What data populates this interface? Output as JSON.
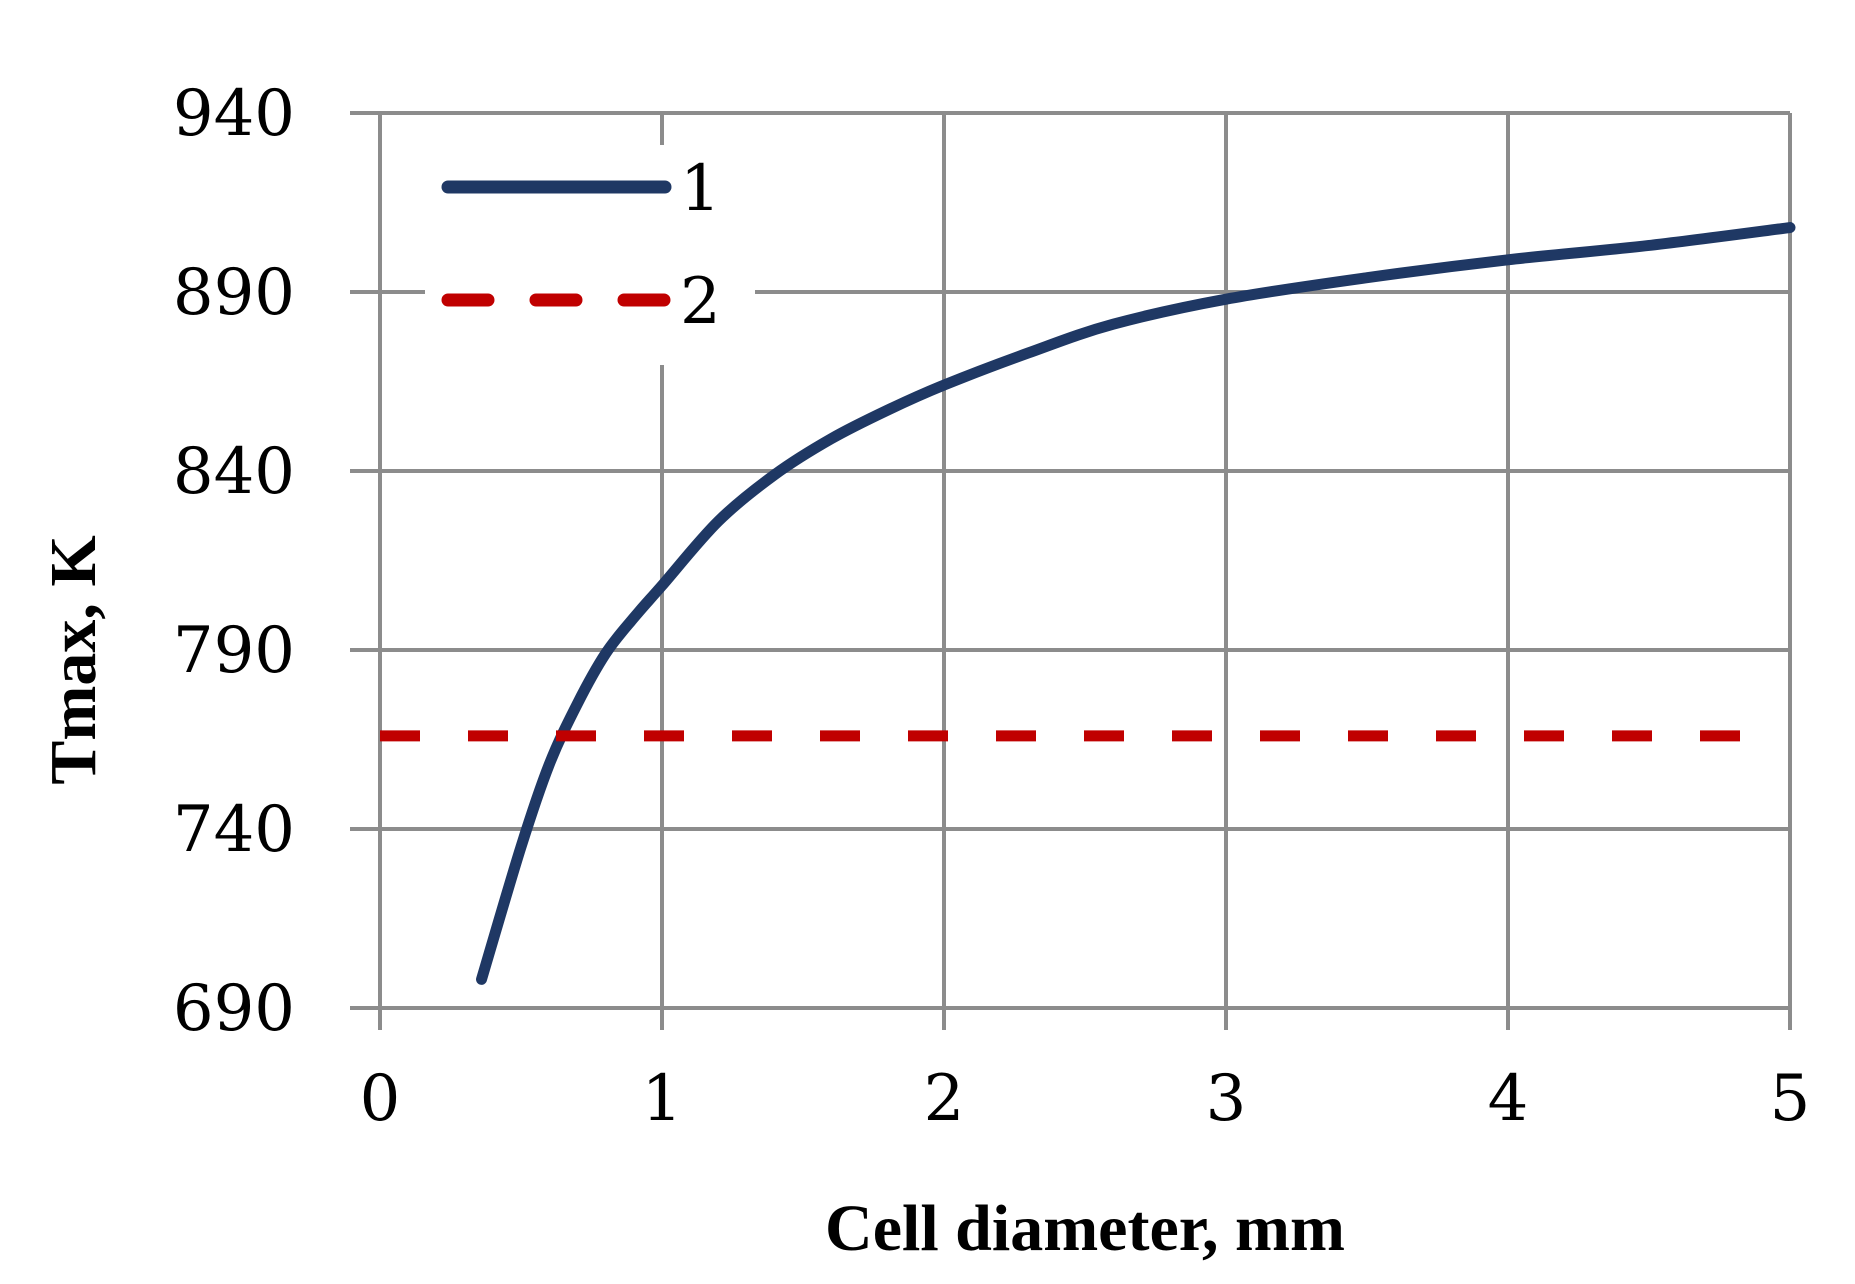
{
  "chart_data": {
    "type": "line",
    "title": "",
    "xlabel": "Cell diameter, mm",
    "ylabel": "Tmax, K",
    "xlim": [
      0,
      5
    ],
    "ylim": [
      690,
      940
    ],
    "xticks": [
      "0",
      "1",
      "2",
      "3",
      "4",
      "5"
    ],
    "yticks": [
      "690",
      "740",
      "790",
      "840",
      "890",
      "940"
    ],
    "grid": true,
    "legend_position": "top-left",
    "series": [
      {
        "name": "1",
        "color": "#1f3864",
        "style": "solid",
        "x": [
          0.36,
          0.5,
          0.6,
          0.7,
          0.8,
          0.9,
          1.0,
          1.2,
          1.4,
          1.6,
          1.8,
          2.0,
          2.3,
          2.6,
          3.0,
          3.5,
          4.0,
          4.5,
          5.0
        ],
        "y": [
          698,
          735,
          758,
          775,
          789,
          799,
          808,
          826,
          839,
          849,
          857,
          864,
          873,
          881,
          888,
          894,
          899,
          903,
          908
        ]
      },
      {
        "name": "2",
        "color": "#c00000",
        "style": "dashed",
        "x": [
          0.0,
          4.85
        ],
        "y": [
          766,
          766
        ]
      }
    ]
  }
}
